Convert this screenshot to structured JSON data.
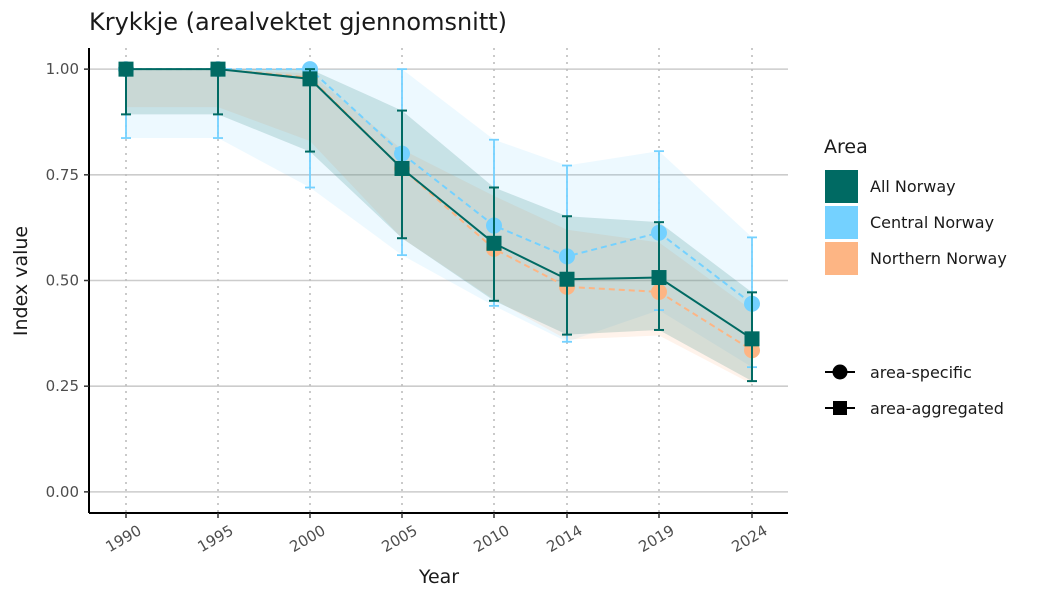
{
  "chart_data": {
    "type": "line",
    "title": "Krykkje (arealvektet gjennomsnitt)",
    "xlabel": "Year",
    "ylabel": "Index value",
    "x": [
      1990,
      1995,
      2000,
      2005,
      2010,
      2014,
      2019,
      2024
    ],
    "x_tick_labels": [
      "1990",
      "1995",
      "2000",
      "2005",
      "2010",
      "2014",
      "2019",
      "2024"
    ],
    "y_ticks": [
      0.0,
      0.25,
      0.5,
      0.75,
      1.0
    ],
    "y_tick_labels": [
      "0.00",
      "0.25",
      "0.50",
      "0.75",
      "1.00"
    ],
    "ylim": [
      -0.05,
      1.05
    ],
    "grid": "horizontal major lines; dotted vertical lines at each year",
    "legend_area_title": "Area",
    "legend_placement": "right",
    "series": [
      {
        "name": "Northern Norway",
        "color": "#FDB584",
        "line_style": "dashed",
        "marker": "circle",
        "legend_group": "area-specific",
        "values": [
          1.0,
          1.0,
          0.98,
          0.765,
          0.575,
          0.485,
          0.473,
          0.335
        ],
        "lower": [
          0.91,
          0.91,
          0.83,
          0.6,
          0.455,
          0.36,
          0.37,
          0.255
        ],
        "upper": [
          1.0,
          1.0,
          0.99,
          0.81,
          0.7,
          0.62,
          0.59,
          0.43
        ],
        "error_bars": false
      },
      {
        "name": "Central Norway",
        "color": "#74D1FF",
        "line_style": "dashed",
        "marker": "circle",
        "legend_group": "area-specific",
        "values": [
          1.0,
          1.0,
          1.0,
          0.8,
          0.63,
          0.557,
          0.613,
          0.445
        ],
        "lower": [
          0.837,
          0.837,
          0.72,
          0.56,
          0.44,
          0.355,
          0.43,
          0.295
        ],
        "upper": [
          1.0,
          1.0,
          1.0,
          1.0,
          0.833,
          0.772,
          0.806,
          0.602
        ],
        "error_bars": true
      },
      {
        "name": "All Norway",
        "color": "#006A63",
        "line_style": "solid",
        "marker": "square",
        "legend_group": "area-aggregated",
        "values": [
          1.0,
          1.0,
          0.977,
          0.765,
          0.588,
          0.503,
          0.507,
          0.362
        ],
        "lower": [
          0.893,
          0.893,
          0.805,
          0.6,
          0.452,
          0.372,
          0.383,
          0.262
        ],
        "upper": [
          1.0,
          1.0,
          1.0,
          0.902,
          0.72,
          0.652,
          0.638,
          0.472
        ],
        "error_bars": true
      }
    ],
    "legend_items": [
      "All Norway",
      "Central Norway",
      "Northern Norway"
    ],
    "legend_shape_items": [
      "area-specific",
      "area-aggregated"
    ]
  }
}
